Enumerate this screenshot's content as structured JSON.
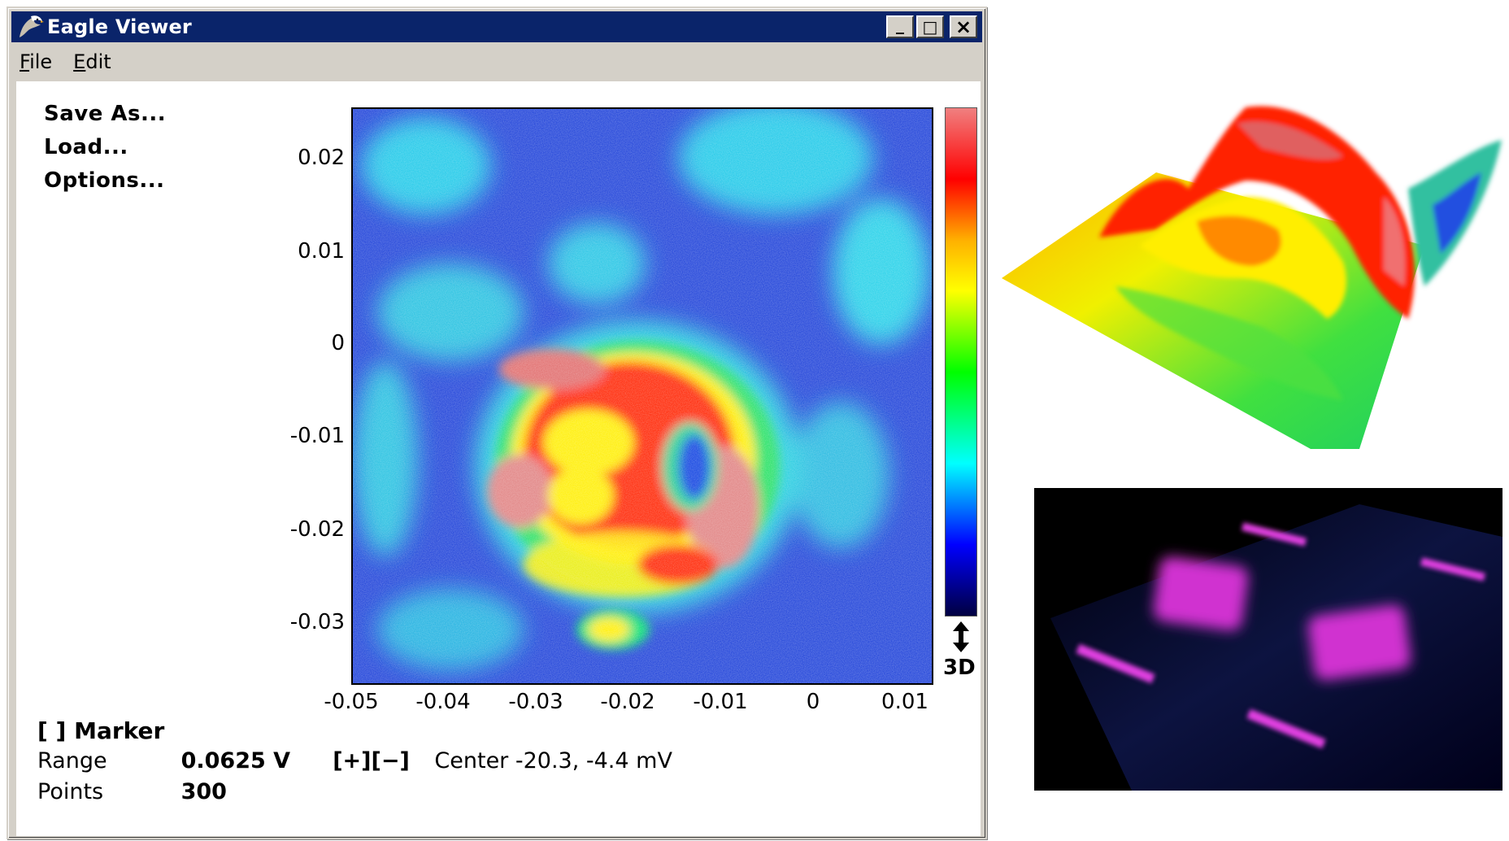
{
  "window": {
    "title": "Eagle Viewer",
    "controls": {
      "minimize": "_",
      "maximize": "□",
      "close": "×"
    }
  },
  "menubar": {
    "items": [
      {
        "label": "File",
        "underline": "F",
        "rest": "ile"
      },
      {
        "label": "Edit",
        "underline": "E",
        "rest": "dit"
      }
    ]
  },
  "side_menu": [
    "Save As...",
    "Load...",
    "Options..."
  ],
  "plot": {
    "y_ticks": [
      "0.02",
      "0.01",
      "0",
      "-0.01",
      "-0.02",
      "-0.03"
    ],
    "x_ticks": [
      "-0.05",
      "-0.04",
      "-0.03",
      "-0.02",
      "-0.01",
      "0",
      "0.01"
    ],
    "colormap": [
      "#f08080",
      "#ff0000",
      "#ffb000",
      "#ffff00",
      "#00ff00",
      "#00ffff",
      "#0000ff",
      "#000040"
    ],
    "toggle_label": "3D"
  },
  "marker": {
    "checkbox": "[ ]",
    "label": "Marker"
  },
  "range": {
    "label": "Range",
    "value": "0.0625 V",
    "plus": "[+]",
    "minus": "[−]",
    "center": "Center -20.3, -4.4 mV"
  },
  "points": {
    "label": "Points",
    "value": "300"
  },
  "icons": {
    "app": "eagle-icon",
    "arrow": "up-down-arrow-icon"
  }
}
